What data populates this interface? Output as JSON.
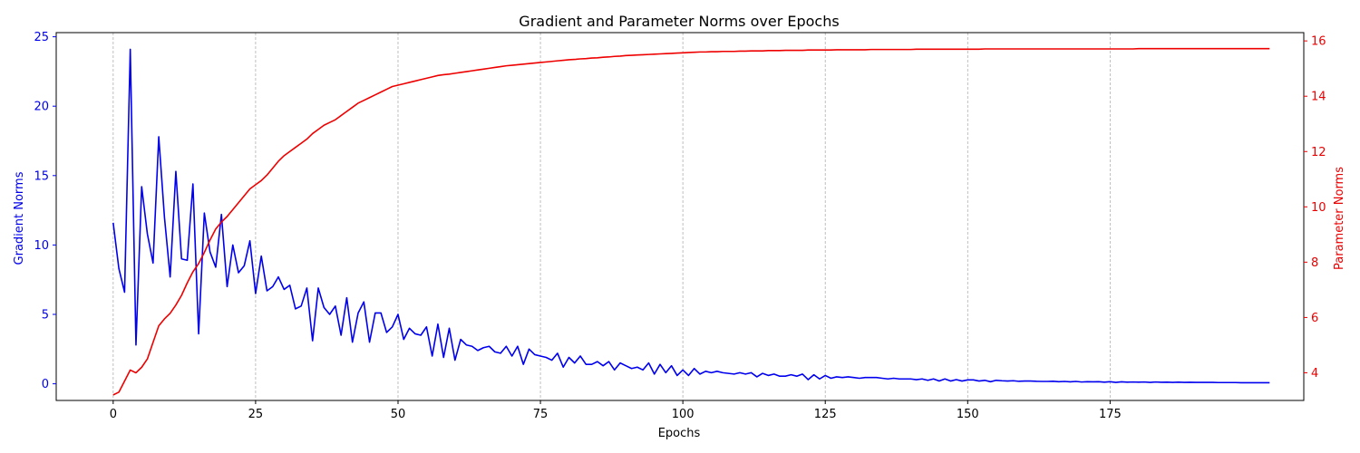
{
  "chart_data": {
    "type": "line",
    "title": "Gradient and Parameter Norms over Epochs",
    "xlabel": "Epochs",
    "ylabel_left": "Gradient Norms",
    "ylabel_right": "Parameter Norms",
    "xlim": [
      -10,
      209
    ],
    "ylim_left": [
      -1.2,
      25.3
    ],
    "ylim_right": [
      3.0,
      16.3
    ],
    "x_ticks": [
      0,
      25,
      50,
      75,
      100,
      125,
      150,
      175
    ],
    "y_left_ticks": [
      0,
      5,
      10,
      15,
      20,
      25
    ],
    "y_right_ticks": [
      4,
      6,
      8,
      10,
      12,
      14,
      16
    ],
    "grid": "vertical dashed",
    "series": [
      {
        "name": "Gradient Norms",
        "axis": "left",
        "color": "#0000ee",
        "values": [
          11.6,
          8.3,
          6.6,
          24.1,
          2.8,
          14.2,
          10.8,
          8.7,
          17.8,
          12.0,
          7.7,
          15.3,
          9.0,
          8.9,
          14.4,
          3.6,
          12.3,
          9.5,
          8.4,
          12.2,
          7.0,
          10.0,
          8.0,
          8.5,
          10.3,
          6.5,
          9.2,
          6.7,
          7.0,
          7.7,
          6.8,
          7.1,
          5.4,
          5.6,
          6.9,
          3.1,
          6.9,
          5.5,
          5.0,
          5.6,
          3.5,
          6.2,
          3.0,
          5.1,
          5.9,
          3.0,
          5.1,
          5.1,
          3.7,
          4.1,
          5.0,
          3.2,
          4.0,
          3.6,
          3.5,
          4.1,
          2.0,
          4.3,
          1.9,
          4.0,
          1.7,
          3.2,
          2.8,
          2.7,
          2.4,
          2.6,
          2.7,
          2.3,
          2.2,
          2.7,
          2.0,
          2.7,
          1.4,
          2.5,
          2.1,
          2.0,
          1.9,
          1.7,
          2.2,
          1.2,
          1.9,
          1.5,
          2.0,
          1.4,
          1.4,
          1.6,
          1.3,
          1.6,
          1.0,
          1.5,
          1.3,
          1.1,
          1.2,
          1.0,
          1.5,
          0.7,
          1.4,
          0.8,
          1.3,
          0.6,
          1.0,
          0.6,
          1.1,
          0.7,
          0.9,
          0.8,
          0.9,
          0.8,
          0.75,
          0.7,
          0.8,
          0.7,
          0.8,
          0.5,
          0.75,
          0.6,
          0.7,
          0.55,
          0.55,
          0.65,
          0.55,
          0.7,
          0.3,
          0.65,
          0.35,
          0.6,
          0.4,
          0.5,
          0.45,
          0.5,
          0.45,
          0.4,
          0.45,
          0.45,
          0.45,
          0.4,
          0.35,
          0.4,
          0.35,
          0.35,
          0.35,
          0.3,
          0.35,
          0.25,
          0.35,
          0.2,
          0.35,
          0.2,
          0.3,
          0.2,
          0.28,
          0.28,
          0.2,
          0.25,
          0.15,
          0.25,
          0.22,
          0.2,
          0.22,
          0.18,
          0.2,
          0.2,
          0.18,
          0.17,
          0.17,
          0.18,
          0.15,
          0.17,
          0.14,
          0.17,
          0.13,
          0.15,
          0.14,
          0.15,
          0.12,
          0.15,
          0.1,
          0.14,
          0.12,
          0.13,
          0.12,
          0.13,
          0.1,
          0.13,
          0.11,
          0.12,
          0.1,
          0.12,
          0.1,
          0.11,
          0.1,
          0.1,
          0.1,
          0.1,
          0.09,
          0.09,
          0.09,
          0.09,
          0.08,
          0.08,
          0.08,
          0.08,
          0.08,
          0.08
        ]
      },
      {
        "name": "Parameter Norms",
        "axis": "right",
        "color": "#ee0000",
        "values": [
          3.2,
          3.3,
          3.7,
          4.1,
          4.0,
          4.2,
          4.5,
          5.1,
          5.7,
          5.95,
          6.15,
          6.45,
          6.8,
          7.25,
          7.65,
          7.95,
          8.35,
          8.8,
          9.2,
          9.45,
          9.65,
          9.9,
          10.15,
          10.4,
          10.65,
          10.8,
          10.95,
          11.15,
          11.4,
          11.65,
          11.85,
          12.0,
          12.15,
          12.3,
          12.45,
          12.65,
          12.8,
          12.95,
          13.05,
          13.15,
          13.3,
          13.45,
          13.6,
          13.75,
          13.85,
          13.95,
          14.05,
          14.15,
          14.25,
          14.35,
          14.4,
          14.45,
          14.5,
          14.55,
          14.6,
          14.65,
          14.7,
          14.75,
          14.78,
          14.8,
          14.83,
          14.86,
          14.89,
          14.92,
          14.95,
          14.98,
          15.01,
          15.04,
          15.07,
          15.1,
          15.12,
          15.14,
          15.16,
          15.18,
          15.2,
          15.22,
          15.24,
          15.26,
          15.28,
          15.3,
          15.32,
          15.33,
          15.35,
          15.36,
          15.38,
          15.39,
          15.41,
          15.42,
          15.44,
          15.45,
          15.47,
          15.48,
          15.49,
          15.5,
          15.51,
          15.52,
          15.53,
          15.54,
          15.55,
          15.56,
          15.57,
          15.58,
          15.59,
          15.6,
          15.6,
          15.61,
          15.61,
          15.62,
          15.62,
          15.62,
          15.63,
          15.63,
          15.64,
          15.64,
          15.64,
          15.65,
          15.65,
          15.65,
          15.66,
          15.66,
          15.66,
          15.66,
          15.67,
          15.67,
          15.67,
          15.67,
          15.67,
          15.68,
          15.68,
          15.68,
          15.68,
          15.68,
          15.68,
          15.69,
          15.69,
          15.69,
          15.69,
          15.69,
          15.69,
          15.69,
          15.69,
          15.7,
          15.7,
          15.7,
          15.7,
          15.7,
          15.7,
          15.7,
          15.7,
          15.7,
          15.7,
          15.7,
          15.7,
          15.71,
          15.71,
          15.71,
          15.71,
          15.71,
          15.71,
          15.71,
          15.71,
          15.71,
          15.71,
          15.71,
          15.71,
          15.71,
          15.71,
          15.71,
          15.71,
          15.71,
          15.71,
          15.71,
          15.71,
          15.71,
          15.71,
          15.71,
          15.71,
          15.71,
          15.71,
          15.71,
          15.72,
          15.72,
          15.72,
          15.72,
          15.72,
          15.72,
          15.72,
          15.72,
          15.72,
          15.72,
          15.72,
          15.72,
          15.72,
          15.72,
          15.72,
          15.72,
          15.72,
          15.72,
          15.72,
          15.72,
          15.72,
          15.72,
          15.72,
          15.72
        ]
      }
    ]
  }
}
